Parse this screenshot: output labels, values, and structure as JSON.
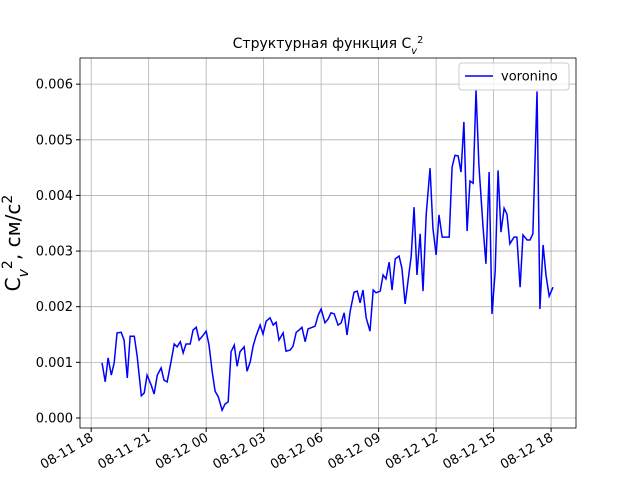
{
  "chart_data": {
    "type": "line",
    "title": [
      {
        "text": "Структурная функция C"
      },
      {
        "text": "v",
        "style": "sub"
      },
      {
        "text": "2",
        "style": "sup"
      }
    ],
    "y_label": [
      {
        "text": "C"
      },
      {
        "text": "v",
        "style": "sub"
      },
      {
        "text": "2",
        "style": "sup"
      },
      {
        "text": ", см/с"
      },
      {
        "text": "2",
        "style": "sup"
      }
    ],
    "x": [
      "08-11 18:34",
      "08-11 18:44",
      "08-11 18:53",
      "08-11 19:03",
      "08-11 19:12",
      "08-11 19:21",
      "08-11 19:34",
      "08-11 19:43",
      "08-11 19:53",
      "08-11 20:02",
      "08-11 20:15",
      "08-11 20:24",
      "08-11 20:37",
      "08-11 20:46",
      "08-11 20:55",
      "08-11 21:08",
      "08-11 21:17",
      "08-11 21:27",
      "08-11 21:39",
      "08-11 21:48",
      "08-11 21:58",
      "08-11 22:10",
      "08-11 22:20",
      "08-11 22:29",
      "08-11 22:39",
      "08-11 22:48",
      "08-11 22:57",
      "08-11 23:10",
      "08-11 23:19",
      "08-11 23:29",
      "08-11 23:38",
      "08-11 23:51",
      "08-12 00:00",
      "08-12 00:09",
      "08-12 00:19",
      "08-12 00:28",
      "08-12 00:38",
      "08-12 00:50",
      "08-12 00:59",
      "08-12 01:09",
      "08-12 01:18",
      "08-12 01:28",
      "08-12 01:37",
      "08-12 01:46",
      "08-12 01:59",
      "08-12 02:08",
      "08-12 02:18",
      "08-12 02:27",
      "08-12 02:36",
      "08-12 02:49",
      "08-12 02:58",
      "08-12 03:08",
      "08-12 03:20",
      "08-12 03:30",
      "08-12 03:39",
      "08-12 03:48",
      "08-12 04:01",
      "08-12 04:10",
      "08-12 04:23",
      "08-12 04:32",
      "08-12 04:42",
      "08-12 04:51",
      "08-12 05:00",
      "08-12 05:10",
      "08-12 05:19",
      "08-12 05:32",
      "08-12 05:41",
      "08-12 05:51",
      "08-12 06:00",
      "08-12 06:12",
      "08-12 06:22",
      "08-12 06:31",
      "08-12 06:41",
      "08-12 06:53",
      "08-12 07:03",
      "08-12 07:12",
      "08-12 07:21",
      "08-12 07:31",
      "08-12 07:43",
      "08-12 07:53",
      "08-12 08:02",
      "08-12 08:11",
      "08-12 08:21",
      "08-12 08:33",
      "08-12 08:43",
      "08-12 08:52",
      "08-12 09:05",
      "08-12 09:14",
      "08-12 09:23",
      "08-12 09:33",
      "08-12 09:42",
      "08-12 09:52",
      "08-12 10:04",
      "08-12 10:13",
      "08-12 10:23",
      "08-12 10:32",
      "08-12 10:42",
      "08-12 10:51",
      "08-12 11:00",
      "08-12 11:10",
      "08-12 11:19",
      "08-12 11:29",
      "08-12 11:41",
      "08-12 11:50",
      "08-12 12:00",
      "08-12 12:09",
      "08-12 12:19",
      "08-12 12:31",
      "08-12 12:41",
      "08-12 12:50",
      "08-12 12:59",
      "08-12 13:09",
      "08-12 13:18",
      "08-12 13:27",
      "08-12 13:37",
      "08-12 13:46",
      "08-12 13:56",
      "08-12 14:05",
      "08-12 14:14",
      "08-12 14:27",
      "08-12 14:36",
      "08-12 14:46",
      "08-12 14:55",
      "08-12 15:05",
      "08-12 15:14",
      "08-12 15:23",
      "08-12 15:33",
      "08-12 15:42",
      "08-12 15:51",
      "08-12 16:04",
      "08-12 16:13",
      "08-12 16:23",
      "08-12 16:32",
      "08-12 16:45",
      "08-12 16:54",
      "08-12 17:03",
      "08-12 17:16",
      "08-12 17:25",
      "08-12 17:35",
      "08-12 17:44",
      "08-12 17:54",
      "08-12 18:06"
    ],
    "series": [
      {
        "name": "voronino",
        "color": "#0000ff",
        "values": [
          0.00099,
          0.00065,
          0.00108,
          0.00077,
          0.00099,
          0.00153,
          0.00154,
          0.0014,
          0.00072,
          0.00147,
          0.00147,
          0.00111,
          0.0004,
          0.00045,
          0.00077,
          0.00059,
          0.00043,
          0.00077,
          0.0009,
          0.00068,
          0.00065,
          0.00101,
          0.00133,
          0.00128,
          0.00137,
          0.00117,
          0.00133,
          0.00133,
          0.00158,
          0.00163,
          0.0014,
          0.00149,
          0.00156,
          0.00131,
          0.00083,
          0.00048,
          0.00038,
          0.00014,
          0.00025,
          0.00029,
          0.00119,
          0.00131,
          0.00093,
          0.00119,
          0.00128,
          0.00084,
          0.00101,
          0.00129,
          0.00147,
          0.00167,
          0.00151,
          0.00174,
          0.0018,
          0.00167,
          0.00172,
          0.0014,
          0.00153,
          0.0012,
          0.00122,
          0.00129,
          0.00154,
          0.00158,
          0.00163,
          0.00137,
          0.0016,
          0.00163,
          0.00165,
          0.00185,
          0.00196,
          0.00171,
          0.00178,
          0.00189,
          0.00187,
          0.00167,
          0.00171,
          0.00189,
          0.00149,
          0.00192,
          0.00226,
          0.00228,
          0.00207,
          0.0023,
          0.0018,
          0.00156,
          0.0023,
          0.00225,
          0.00228,
          0.00257,
          0.0025,
          0.0028,
          0.0023,
          0.00286,
          0.00291,
          0.00269,
          0.00205,
          0.00246,
          0.00291,
          0.00379,
          0.00257,
          0.00331,
          0.00228,
          0.00366,
          0.00449,
          0.00341,
          0.00293,
          0.00365,
          0.00325,
          0.00325,
          0.00325,
          0.00451,
          0.00472,
          0.00471,
          0.00442,
          0.00532,
          0.00336,
          0.00426,
          0.00422,
          0.00589,
          0.00454,
          0.00343,
          0.00277,
          0.00442,
          0.00187,
          0.00264,
          0.00445,
          0.00334,
          0.00377,
          0.00366,
          0.00313,
          0.00325,
          0.00325,
          0.00235,
          0.00329,
          0.0032,
          0.0032,
          0.00331,
          0.00587,
          0.00196,
          0.00311,
          0.00257,
          0.00219,
          0.00235
        ]
      }
    ],
    "xlim": [
      "08-11 17:25",
      "08-12 19:18"
    ],
    "xticks": [
      {
        "value": "08-11 18:00",
        "label": "08-11 18"
      },
      {
        "value": "08-11 21:00",
        "label": "08-11 21"
      },
      {
        "value": "08-12 00:00",
        "label": "08-12 00"
      },
      {
        "value": "08-12 03:00",
        "label": "08-12 03"
      },
      {
        "value": "08-12 06:00",
        "label": "08-12 06"
      },
      {
        "value": "08-12 09:00",
        "label": "08-12 09"
      },
      {
        "value": "08-12 12:00",
        "label": "08-12 12"
      },
      {
        "value": "08-12 15:00",
        "label": "08-12 15"
      },
      {
        "value": "08-12 18:00",
        "label": "08-12 18"
      }
    ],
    "ylim": [
      -0.00018,
      0.00647
    ],
    "yticks": [
      {
        "value": 0,
        "label": "0.000"
      },
      {
        "value": 0.001,
        "label": "0.001"
      },
      {
        "value": 0.002,
        "label": "0.002"
      },
      {
        "value": 0.003,
        "label": "0.003"
      },
      {
        "value": 0.004,
        "label": "0.004"
      },
      {
        "value": 0.005,
        "label": "0.005"
      },
      {
        "value": 0.006,
        "label": "0.006"
      }
    ],
    "grid": true,
    "legend": "upper right"
  }
}
